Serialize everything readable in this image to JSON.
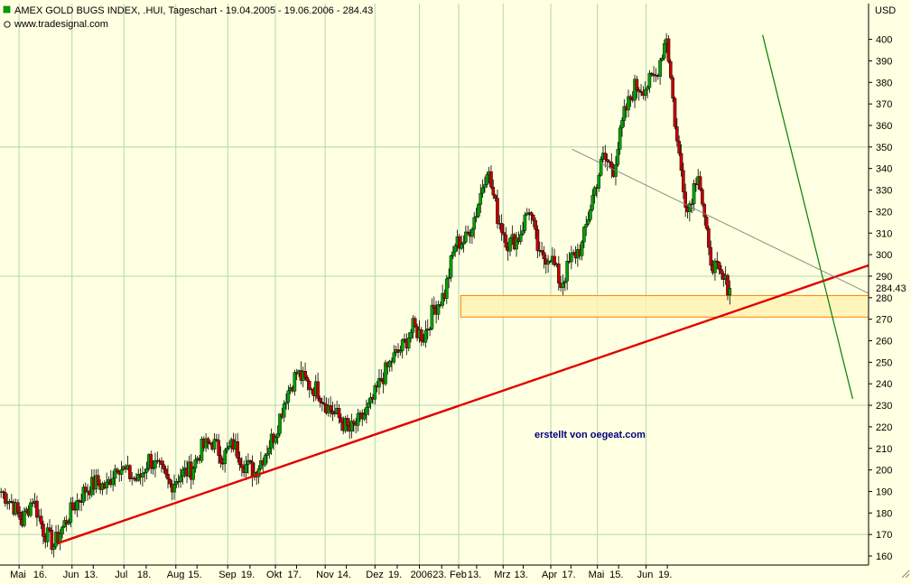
{
  "header": {
    "title": "AMEX GOLD BUGS INDEX, .HUI, Tageschart - 19.04.2005 - 19.06.2006 - 284.43",
    "source": "www.tradesignal.com",
    "currency": "USD"
  },
  "annotation": {
    "credit": "erstellt von oegeat.com"
  },
  "colors": {
    "background": "#ffffe1",
    "grid": "#b0d8b0",
    "up_candle": "#00a000",
    "down_candle": "#c00000",
    "support_line": "#e00000",
    "down_trend_line": "#008000",
    "resistance_line": "#808080",
    "zone_fill": "#fff2b0",
    "zone_border": "#ff8000"
  },
  "chart_data": {
    "type": "candlestick",
    "title": "AMEX GOLD BUGS INDEX, .HUI, Tageschart - 19.04.2005 - 19.06.2006 - 284.43",
    "ylabel": "USD",
    "ylim": [
      160,
      400
    ],
    "last_value": 284.43,
    "last_value_label": "284.43",
    "y_ticks": [
      160,
      170,
      180,
      190,
      200,
      210,
      220,
      230,
      240,
      250,
      260,
      270,
      280,
      290,
      300,
      310,
      320,
      330,
      340,
      350,
      360,
      370,
      380,
      390,
      400
    ],
    "x_tick_labels": [
      "Mai",
      "16.",
      "Jun",
      "13.",
      "Jul",
      "18.",
      "Aug",
      "15.",
      "Sep",
      "19.",
      "Okt",
      "17.",
      "Nov",
      "14.",
      "Dez",
      "19.",
      "2006",
      "23.",
      "Feb",
      "13.",
      "Mrz",
      "13.",
      "Apr",
      "17.",
      "Mai",
      "15.",
      "Jun",
      "19."
    ],
    "x_ticks_weeks": [
      1.8,
      4.0,
      6.8,
      8.8,
      11.7,
      13.8,
      16.6,
      18.6,
      21.5,
      23.6,
      26.0,
      28.0,
      30.7,
      32.7,
      35.4,
      37.5,
      39.6,
      41.7,
      43.3,
      45.0,
      47.5,
      49.4,
      52.0,
      53.9,
      56.4,
      58.4,
      61.0,
      63.0
    ],
    "weekly_closes": [
      190,
      185,
      176,
      187,
      172,
      165,
      175,
      184,
      191,
      194,
      192,
      203,
      198,
      195,
      205,
      200,
      193,
      198,
      200,
      210,
      213,
      206,
      212,
      203,
      199,
      208,
      218,
      235,
      245,
      240,
      237,
      229,
      224,
      218,
      223,
      230,
      242,
      251,
      257,
      266,
      262,
      275,
      282,
      305,
      307,
      320,
      341,
      318,
      305,
      308,
      322,
      298,
      300,
      286,
      298,
      304,
      327,
      345,
      340,
      365,
      378,
      378,
      383,
      402,
      352,
      320,
      340,
      300,
      290,
      284.43
    ],
    "trend_lines": [
      {
        "kind": "support",
        "from": {
          "week": 5.5,
          "value": 166
        },
        "to": {
          "week": 82.0,
          "value": 295
        }
      },
      {
        "kind": "down",
        "from": {
          "week": 72.0,
          "value": 402
        },
        "to": {
          "week": 80.5,
          "value": 233
        }
      },
      {
        "kind": "resistance",
        "from": {
          "week": 54.0,
          "value": 349
        },
        "to": {
          "week": 82.0,
          "value": 282
        }
      }
    ],
    "zone": {
      "from_week": 43.5,
      "to_week": 82.0,
      "low": 271,
      "high": 281
    }
  }
}
